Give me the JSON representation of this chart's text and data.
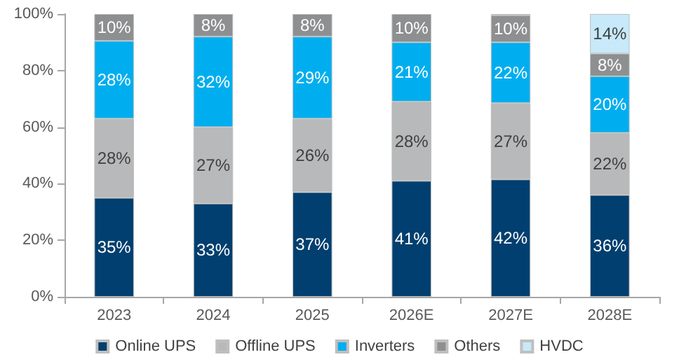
{
  "chart_data": {
    "type": "bar",
    "stacked": true,
    "categories": [
      "2023",
      "2024",
      "2025",
      "2026E",
      "2027E",
      "2028E"
    ],
    "series": [
      {
        "name": "Online UPS",
        "color": "#003f6f",
        "values": [
          35,
          33,
          37,
          41,
          41.5,
          36
        ],
        "value_labels": [
          "35%",
          "33%",
          "37%",
          "41%",
          "42%",
          "36%"
        ]
      },
      {
        "name": "Offline UPS",
        "color": "#b8b9bb",
        "values": [
          28,
          27,
          26,
          28,
          27,
          22
        ],
        "value_labels": [
          "28%",
          "27%",
          "26%",
          "28%",
          "27%",
          "22%"
        ]
      },
      {
        "name": "Inverters",
        "color": "#00aeef",
        "values": [
          27.5,
          32,
          29,
          21,
          21.5,
          20
        ],
        "value_labels": [
          "28%",
          "32%",
          "29%",
          "21%",
          "22%",
          "20%"
        ]
      },
      {
        "name": "Others",
        "color": "#8e8f91",
        "values": [
          9.5,
          8,
          8,
          10,
          9.5,
          8
        ],
        "value_labels": [
          "10%",
          "8%",
          "8%",
          "10%",
          "10%",
          "8%"
        ]
      },
      {
        "name": "HVDC",
        "color": "#c7e9f9",
        "values": [
          null,
          null,
          null,
          null,
          0.5,
          14
        ],
        "value_labels": [
          null,
          null,
          null,
          null,
          null,
          "14%"
        ]
      }
    ],
    "ylim": [
      0,
      100
    ],
    "yticks": [
      {
        "value": 0,
        "label": "0%"
      },
      {
        "value": 20,
        "label": "20%"
      },
      {
        "value": 40,
        "label": "40%"
      },
      {
        "value": 60,
        "label": "60%"
      },
      {
        "value": 80,
        "label": "80%"
      },
      {
        "value": 100,
        "label": "100%"
      }
    ],
    "grid": false,
    "legend": "bottom"
  }
}
